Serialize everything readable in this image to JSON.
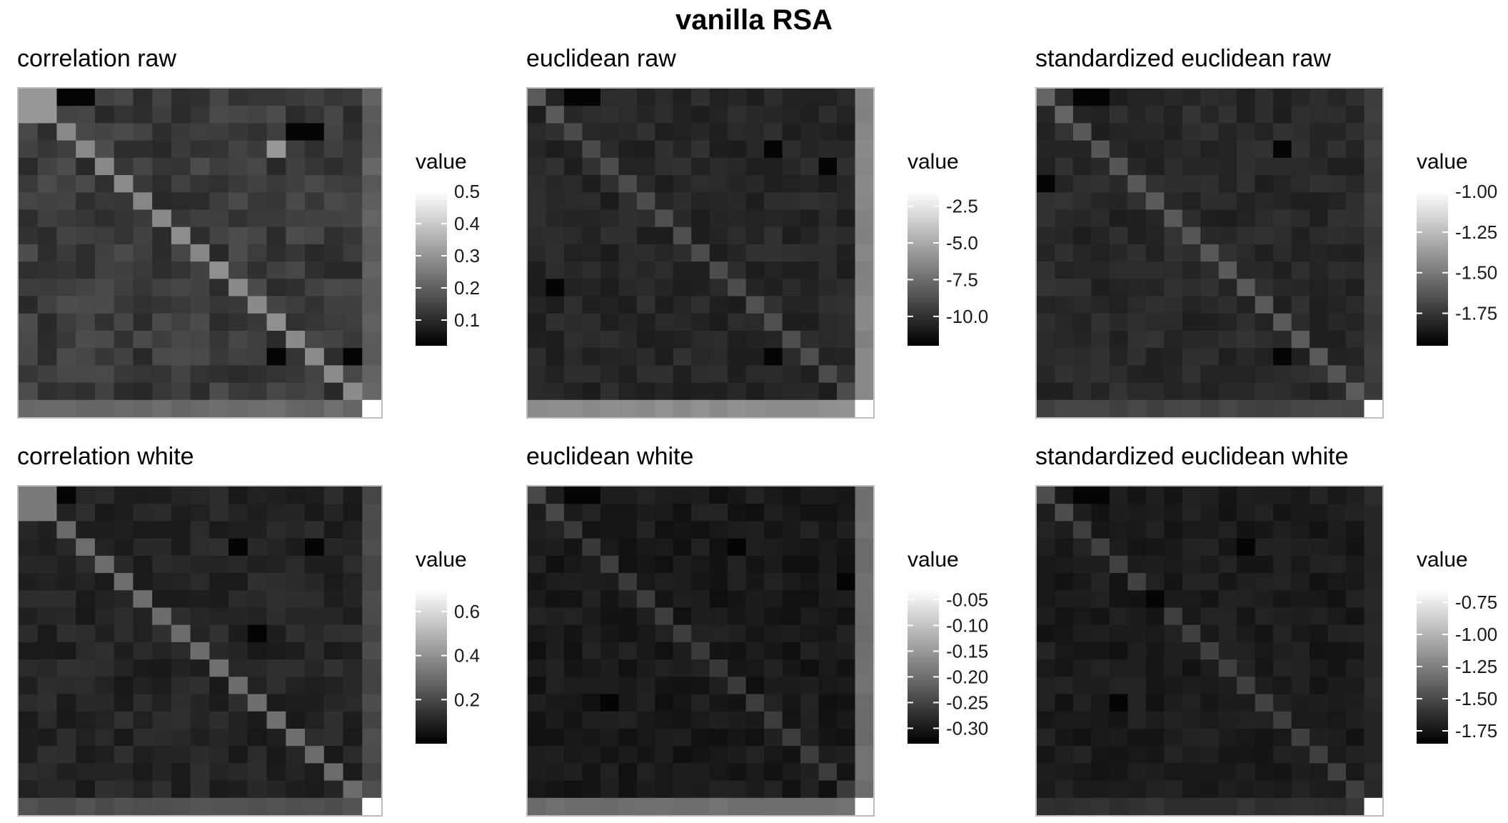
{
  "title": "vanilla RSA",
  "chart_data": [
    {
      "type": "heatmap",
      "title": "correlation raw",
      "legend_title": "value",
      "n": 19,
      "range": [
        0.02,
        0.5
      ],
      "ticks": [
        0.5,
        0.4,
        0.3,
        0.2,
        0.1
      ],
      "tick_labels": [
        "0.5",
        "0.4",
        "0.3",
        "0.2",
        "0.1"
      ],
      "diag": 0.28,
      "offdiag": 0.13,
      "noise": 0.035,
      "lastrow": 0.22,
      "lastcol": 0.2,
      "corner": 0.5,
      "dark_cells": [
        [
          0,
          2
        ],
        [
          0,
          3
        ],
        [
          2,
          14
        ],
        [
          2,
          15
        ],
        [
          15,
          17
        ],
        [
          15,
          13
        ]
      ],
      "light_cells": [
        [
          0,
          0
        ],
        [
          1,
          1
        ],
        [
          0,
          1
        ],
        [
          1,
          0
        ],
        [
          3,
          13
        ]
      ],
      "seed": 11
    },
    {
      "type": "heatmap",
      "title": "euclidean raw",
      "legend_title": "value",
      "n": 19,
      "range": [
        -12,
        -1.5
      ],
      "ticks": [
        -2.5,
        -5.0,
        -7.5,
        -10.0
      ],
      "tick_labels": [
        "-2.5",
        "-5.0",
        "-7.5",
        "-10.0"
      ],
      "diag": -8.8,
      "offdiag": -10.4,
      "noise": 0.45,
      "lastrow": -6.2,
      "lastcol": -6.5,
      "corner": -1.5,
      "dark_cells": [
        [
          0,
          3
        ],
        [
          0,
          2
        ],
        [
          3,
          13
        ],
        [
          4,
          16
        ],
        [
          15,
          13
        ],
        [
          11,
          1
        ]
      ],
      "light_cells": [
        [
          0,
          0
        ],
        [
          1,
          1
        ]
      ],
      "seed": 23
    },
    {
      "type": "heatmap",
      "title": "standardized euclidean raw",
      "legend_title": "value",
      "n": 19,
      "range": [
        -1.95,
        -1.0
      ],
      "ticks": [
        -1.0,
        -1.25,
        -1.5,
        -1.75
      ],
      "tick_labels": [
        "-1.00",
        "-1.25",
        "-1.50",
        "-1.75"
      ],
      "diag": -1.62,
      "offdiag": -1.8,
      "noise": 0.04,
      "lastrow": -1.7,
      "lastcol": -1.72,
      "corner": -1.0,
      "dark_cells": [
        [
          0,
          2
        ],
        [
          0,
          3
        ],
        [
          3,
          13
        ],
        [
          5,
          0
        ],
        [
          15,
          13
        ]
      ],
      "light_cells": [
        [
          0,
          0
        ],
        [
          1,
          1
        ]
      ],
      "seed": 37
    },
    {
      "type": "heatmap",
      "title": "correlation white",
      "legend_title": "value",
      "n": 19,
      "range": [
        0.0,
        0.7
      ],
      "ticks": [
        0.6,
        0.4,
        0.2
      ],
      "tick_labels": [
        "0.6",
        "0.4",
        "0.2"
      ],
      "diag": 0.3,
      "offdiag": 0.1,
      "noise": 0.035,
      "lastrow": 0.22,
      "lastcol": 0.2,
      "corner": 0.7,
      "dark_cells": [
        [
          3,
          11
        ],
        [
          3,
          15
        ],
        [
          8,
          12
        ],
        [
          0,
          2
        ]
      ],
      "light_cells": [
        [
          0,
          0
        ],
        [
          1,
          1
        ],
        [
          0,
          1
        ],
        [
          1,
          0
        ]
      ],
      "seed": 53
    },
    {
      "type": "heatmap",
      "title": "euclidean white",
      "legend_title": "value",
      "n": 19,
      "range": [
        -0.33,
        -0.03
      ],
      "ticks": [
        -0.05,
        -0.1,
        -0.15,
        -0.2,
        -0.25,
        -0.3
      ],
      "tick_labels": [
        "-0.05",
        "-0.10",
        "-0.15",
        "-0.20",
        "-0.25",
        "-0.30"
      ],
      "diag": -0.26,
      "offdiag": -0.3,
      "noise": 0.012,
      "lastrow": -0.2,
      "lastcol": -0.2,
      "corner": -0.03,
      "dark_cells": [
        [
          5,
          17
        ],
        [
          0,
          2
        ],
        [
          0,
          3
        ],
        [
          3,
          11
        ],
        [
          12,
          4
        ]
      ],
      "light_cells": [
        [
          0,
          0
        ],
        [
          1,
          1
        ]
      ],
      "seed": 71
    },
    {
      "type": "heatmap",
      "title": "standardized euclidean white",
      "legend_title": "value",
      "n": 19,
      "range": [
        -1.85,
        -0.65
      ],
      "ticks": [
        -0.75,
        -1.0,
        -1.25,
        -1.5,
        -1.75
      ],
      "tick_labels": [
        "-0.75",
        "-1.00",
        "-1.25",
        "-1.50",
        "-1.75"
      ],
      "diag": -1.55,
      "offdiag": -1.72,
      "noise": 0.045,
      "lastrow": -1.62,
      "lastcol": -1.66,
      "corner": -0.65,
      "dark_cells": [
        [
          0,
          2
        ],
        [
          0,
          3
        ],
        [
          3,
          11
        ],
        [
          6,
          6
        ],
        [
          12,
          4
        ]
      ],
      "light_cells": [
        [
          0,
          0
        ],
        [
          1,
          1
        ]
      ],
      "seed": 89
    }
  ]
}
